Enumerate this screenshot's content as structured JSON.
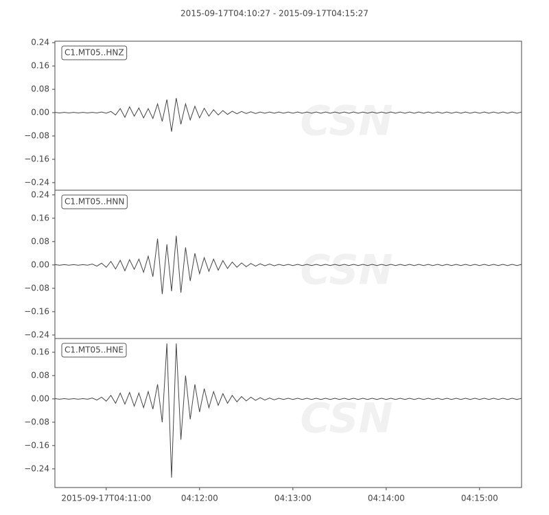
{
  "title": "2015-09-17T04:10:27  -  2015-09-17T04:15:27",
  "watermark": "CSN",
  "chart_data": [
    {
      "type": "line",
      "x": [
        "2015-09-17T04:10:27",
        "2015-09-17T04:10:30",
        "2015-09-17T04:10:33",
        "2015-09-17T04:10:36",
        "2015-09-17T04:10:39",
        "2015-09-17T04:10:42",
        "2015-09-17T04:10:45",
        "2015-09-17T04:10:48",
        "2015-09-17T04:10:51",
        "2015-09-17T04:10:54",
        "2015-09-17T04:10:57",
        "2015-09-17T04:11:00",
        "2015-09-17T04:11:03",
        "2015-09-17T04:11:06",
        "2015-09-17T04:11:09",
        "2015-09-17T04:11:12",
        "2015-09-17T04:11:15",
        "2015-09-17T04:11:18",
        "2015-09-17T04:11:21",
        "2015-09-17T04:11:24",
        "2015-09-17T04:11:27",
        "2015-09-17T04:11:30",
        "2015-09-17T04:11:33",
        "2015-09-17T04:11:36",
        "2015-09-17T04:11:39",
        "2015-09-17T04:11:42",
        "2015-09-17T04:11:45",
        "2015-09-17T04:11:48",
        "2015-09-17T04:11:51",
        "2015-09-17T04:11:54",
        "2015-09-17T04:11:57",
        "2015-09-17T04:12:00",
        "2015-09-17T04:12:03",
        "2015-09-17T04:12:06",
        "2015-09-17T04:12:09",
        "2015-09-17T04:12:12",
        "2015-09-17T04:12:15",
        "2015-09-17T04:12:18",
        "2015-09-17T04:12:21",
        "2015-09-17T04:12:24",
        "2015-09-17T04:12:27",
        "2015-09-17T04:12:30",
        "2015-09-17T04:12:33",
        "2015-09-17T04:12:36",
        "2015-09-17T04:12:39",
        "2015-09-17T04:12:42",
        "2015-09-17T04:12:45",
        "2015-09-17T04:12:48",
        "2015-09-17T04:12:51",
        "2015-09-17T04:12:54",
        "2015-09-17T04:12:57",
        "2015-09-17T04:13:00",
        "2015-09-17T04:13:03",
        "2015-09-17T04:13:06",
        "2015-09-17T04:13:09",
        "2015-09-17T04:13:12",
        "2015-09-17T04:13:15",
        "2015-09-17T04:13:18",
        "2015-09-17T04:13:21",
        "2015-09-17T04:13:24",
        "2015-09-17T04:13:27",
        "2015-09-17T04:13:30",
        "2015-09-17T04:13:33",
        "2015-09-17T04:13:36",
        "2015-09-17T04:13:39",
        "2015-09-17T04:13:42",
        "2015-09-17T04:13:45",
        "2015-09-17T04:13:48",
        "2015-09-17T04:13:51",
        "2015-09-17T04:13:54",
        "2015-09-17T04:13:57",
        "2015-09-17T04:14:00",
        "2015-09-17T04:14:03",
        "2015-09-17T04:14:06",
        "2015-09-17T04:14:09",
        "2015-09-17T04:14:12",
        "2015-09-17T04:14:15",
        "2015-09-17T04:14:18",
        "2015-09-17T04:14:21",
        "2015-09-17T04:14:24",
        "2015-09-17T04:14:27",
        "2015-09-17T04:14:30",
        "2015-09-17T04:14:33",
        "2015-09-17T04:14:36",
        "2015-09-17T04:14:39",
        "2015-09-17T04:14:42",
        "2015-09-17T04:14:45",
        "2015-09-17T04:14:48",
        "2015-09-17T04:14:51",
        "2015-09-17T04:14:54",
        "2015-09-17T04:14:57",
        "2015-09-17T04:15:00",
        "2015-09-17T04:15:03",
        "2015-09-17T04:15:06",
        "2015-09-17T04:15:09",
        "2015-09-17T04:15:12",
        "2015-09-17T04:15:15",
        "2015-09-17T04:15:18",
        "2015-09-17T04:15:21",
        "2015-09-17T04:15:24",
        "2015-09-17T04:15:27"
      ],
      "series": [
        {
          "name": "C1.MT05..HNZ",
          "color": "#444444",
          "values": [
            0.001,
            -0.001,
            0.001,
            -0.001,
            0.001,
            -0.001,
            0.001,
            -0.001,
            0.001,
            -0.001,
            0.002,
            -0.002,
            0.004,
            -0.008,
            0.014,
            -0.016,
            0.02,
            -0.012,
            0.016,
            -0.018,
            0.014,
            -0.02,
            0.03,
            -0.03,
            0.045,
            -0.065,
            0.05,
            -0.04,
            0.03,
            -0.025,
            0.022,
            -0.018,
            0.015,
            -0.012,
            0.01,
            -0.008,
            0.007,
            -0.006,
            0.005,
            -0.004,
            0.004,
            -0.003,
            0.003,
            -0.003,
            0.002,
            -0.002,
            0.002,
            -0.002,
            0.002,
            -0.002,
            0.002,
            -0.002,
            0.002,
            -0.002,
            0.002,
            -0.002,
            0.002,
            -0.002,
            0.002,
            -0.002,
            0.002,
            -0.002,
            0.002,
            -0.002,
            0.002,
            -0.002,
            0.002,
            -0.002,
            0.002,
            -0.002,
            0.002,
            -0.002,
            0.002,
            -0.002,
            0.002,
            -0.002,
            0.002,
            -0.002,
            0.002,
            -0.002,
            0.002,
            -0.002,
            0.002,
            -0.002,
            0.002,
            -0.002,
            0.002,
            -0.002,
            0.002,
            -0.002,
            0.002,
            -0.002,
            0.002,
            -0.002,
            0.002,
            -0.002,
            0.002,
            -0.002,
            0.002,
            -0.002,
            0.002
          ]
        }
      ],
      "xlim": [
        "2015-09-17T04:10:27",
        "2015-09-17T04:15:27"
      ],
      "ylim": [
        -0.266,
        0.245
      ],
      "yticks": [
        0.24,
        0.16,
        0.08,
        {
          "value": 0,
          "label": "0.00"
        },
        {
          "value": -0.08,
          "label": "−0.08"
        },
        {
          "value": -0.16,
          "label": "−0.16"
        },
        {
          "value": -0.24,
          "label": "−0.24"
        }
      ]
    },
    {
      "type": "line",
      "x": [
        "2015-09-17T04:10:27",
        "2015-09-17T04:10:30",
        "2015-09-17T04:10:33",
        "2015-09-17T04:10:36",
        "2015-09-17T04:10:39",
        "2015-09-17T04:10:42",
        "2015-09-17T04:10:45",
        "2015-09-17T04:10:48",
        "2015-09-17T04:10:51",
        "2015-09-17T04:10:54",
        "2015-09-17T04:10:57",
        "2015-09-17T04:11:00",
        "2015-09-17T04:11:03",
        "2015-09-17T04:11:06",
        "2015-09-17T04:11:09",
        "2015-09-17T04:11:12",
        "2015-09-17T04:11:15",
        "2015-09-17T04:11:18",
        "2015-09-17T04:11:21",
        "2015-09-17T04:11:24",
        "2015-09-17T04:11:27",
        "2015-09-17T04:11:30",
        "2015-09-17T04:11:33",
        "2015-09-17T04:11:36",
        "2015-09-17T04:11:39",
        "2015-09-17T04:11:42",
        "2015-09-17T04:11:45",
        "2015-09-17T04:11:48",
        "2015-09-17T04:11:51",
        "2015-09-17T04:11:54",
        "2015-09-17T04:11:57",
        "2015-09-17T04:12:00",
        "2015-09-17T04:12:03",
        "2015-09-17T04:12:06",
        "2015-09-17T04:12:09",
        "2015-09-17T04:12:12",
        "2015-09-17T04:12:15",
        "2015-09-17T04:12:18",
        "2015-09-17T04:12:21",
        "2015-09-17T04:12:24",
        "2015-09-17T04:12:27",
        "2015-09-17T04:12:30",
        "2015-09-17T04:12:33",
        "2015-09-17T04:12:36",
        "2015-09-17T04:12:39",
        "2015-09-17T04:12:42",
        "2015-09-17T04:12:45",
        "2015-09-17T04:12:48",
        "2015-09-17T04:12:51",
        "2015-09-17T04:12:54",
        "2015-09-17T04:12:57",
        "2015-09-17T04:13:00",
        "2015-09-17T04:13:03",
        "2015-09-17T04:13:06",
        "2015-09-17T04:13:09",
        "2015-09-17T04:13:12",
        "2015-09-17T04:13:15",
        "2015-09-17T04:13:18",
        "2015-09-17T04:13:21",
        "2015-09-17T04:13:24",
        "2015-09-17T04:13:27",
        "2015-09-17T04:13:30",
        "2015-09-17T04:13:33",
        "2015-09-17T04:13:36",
        "2015-09-17T04:13:39",
        "2015-09-17T04:13:42",
        "2015-09-17T04:13:45",
        "2015-09-17T04:13:48",
        "2015-09-17T04:13:51",
        "2015-09-17T04:13:54",
        "2015-09-17T04:13:57",
        "2015-09-17T04:14:00",
        "2015-09-17T04:14:03",
        "2015-09-17T04:14:06",
        "2015-09-17T04:14:09",
        "2015-09-17T04:14:12",
        "2015-09-17T04:14:15",
        "2015-09-17T04:14:18",
        "2015-09-17T04:14:21",
        "2015-09-17T04:14:24",
        "2015-09-17T04:14:27",
        "2015-09-17T04:14:30",
        "2015-09-17T04:14:33",
        "2015-09-17T04:14:36",
        "2015-09-17T04:14:39",
        "2015-09-17T04:14:42",
        "2015-09-17T04:14:45",
        "2015-09-17T04:14:48",
        "2015-09-17T04:14:51",
        "2015-09-17T04:14:54",
        "2015-09-17T04:14:57",
        "2015-09-17T04:15:00",
        "2015-09-17T04:15:03",
        "2015-09-17T04:15:06",
        "2015-09-17T04:15:09",
        "2015-09-17T04:15:12",
        "2015-09-17T04:15:15",
        "2015-09-17T04:15:18",
        "2015-09-17T04:15:21",
        "2015-09-17T04:15:24",
        "2015-09-17T04:15:27"
      ],
      "series": [
        {
          "name": "C1.MT05..HNN",
          "color": "#444444",
          "values": [
            0.001,
            -0.001,
            0.001,
            -0.001,
            0.001,
            -0.001,
            0.001,
            -0.001,
            0.003,
            -0.004,
            0.006,
            -0.008,
            0.012,
            -0.014,
            0.016,
            -0.02,
            0.018,
            -0.015,
            0.02,
            -0.025,
            0.03,
            -0.04,
            0.09,
            -0.1,
            0.07,
            -0.09,
            0.1,
            -0.095,
            0.06,
            -0.055,
            0.04,
            -0.03,
            0.025,
            -0.022,
            0.02,
            -0.018,
            0.015,
            -0.012,
            0.01,
            -0.008,
            0.007,
            -0.006,
            0.005,
            -0.004,
            0.004,
            -0.003,
            0.003,
            -0.003,
            0.002,
            -0.002,
            0.002,
            -0.002,
            0.002,
            -0.002,
            0.002,
            -0.002,
            0.002,
            -0.002,
            0.002,
            -0.002,
            0.002,
            -0.002,
            0.002,
            -0.002,
            0.002,
            -0.002,
            0.002,
            -0.002,
            0.002,
            -0.002,
            0.002,
            -0.002,
            0.002,
            -0.002,
            0.002,
            -0.002,
            0.002,
            -0.002,
            0.002,
            -0.002,
            0.002,
            -0.002,
            0.002,
            -0.002,
            0.002,
            -0.002,
            0.002,
            -0.002,
            0.002,
            -0.002,
            0.002,
            -0.002,
            0.002,
            -0.002,
            0.002,
            -0.002,
            0.002,
            -0.002,
            0.002,
            -0.002,
            0.002
          ]
        }
      ],
      "xlim": [
        "2015-09-17T04:10:27",
        "2015-09-17T04:15:27"
      ],
      "ylim": [
        -0.252,
        0.256
      ],
      "yticks": [
        0.24,
        0.16,
        0.08,
        {
          "value": 0,
          "label": "0.00"
        },
        {
          "value": -0.08,
          "label": "−0.08"
        },
        {
          "value": -0.16,
          "label": "−0.16"
        },
        {
          "value": -0.24,
          "label": "−0.24"
        }
      ]
    },
    {
      "type": "line",
      "x": [
        "2015-09-17T04:10:27",
        "2015-09-17T04:10:30",
        "2015-09-17T04:10:33",
        "2015-09-17T04:10:36",
        "2015-09-17T04:10:39",
        "2015-09-17T04:10:42",
        "2015-09-17T04:10:45",
        "2015-09-17T04:10:48",
        "2015-09-17T04:10:51",
        "2015-09-17T04:10:54",
        "2015-09-17T04:10:57",
        "2015-09-17T04:11:00",
        "2015-09-17T04:11:03",
        "2015-09-17T04:11:06",
        "2015-09-17T04:11:09",
        "2015-09-17T04:11:12",
        "2015-09-17T04:11:15",
        "2015-09-17T04:11:18",
        "2015-09-17T04:11:21",
        "2015-09-17T04:11:24",
        "2015-09-17T04:11:27",
        "2015-09-17T04:11:30",
        "2015-09-17T04:11:33",
        "2015-09-17T04:11:36",
        "2015-09-17T04:11:39",
        "2015-09-17T04:11:42",
        "2015-09-17T04:11:45",
        "2015-09-17T04:11:48",
        "2015-09-17T04:11:51",
        "2015-09-17T04:11:54",
        "2015-09-17T04:11:57",
        "2015-09-17T04:12:00",
        "2015-09-17T04:12:03",
        "2015-09-17T04:12:06",
        "2015-09-17T04:12:09",
        "2015-09-17T04:12:12",
        "2015-09-17T04:12:15",
        "2015-09-17T04:12:18",
        "2015-09-17T04:12:21",
        "2015-09-17T04:12:24",
        "2015-09-17T04:12:27",
        "2015-09-17T04:12:30",
        "2015-09-17T04:12:33",
        "2015-09-17T04:12:36",
        "2015-09-17T04:12:39",
        "2015-09-17T04:12:42",
        "2015-09-17T04:12:45",
        "2015-09-17T04:12:48",
        "2015-09-17T04:12:51",
        "2015-09-17T04:12:54",
        "2015-09-17T04:12:57",
        "2015-09-17T04:13:00",
        "2015-09-17T04:13:03",
        "2015-09-17T04:13:06",
        "2015-09-17T04:13:09",
        "2015-09-17T04:13:12",
        "2015-09-17T04:13:15",
        "2015-09-17T04:13:18",
        "2015-09-17T04:13:21",
        "2015-09-17T04:13:24",
        "2015-09-17T04:13:27",
        "2015-09-17T04:13:30",
        "2015-09-17T04:13:33",
        "2015-09-17T04:13:36",
        "2015-09-17T04:13:39",
        "2015-09-17T04:13:42",
        "2015-09-17T04:13:45",
        "2015-09-17T04:13:48",
        "2015-09-17T04:13:51",
        "2015-09-17T04:13:54",
        "2015-09-17T04:13:57",
        "2015-09-17T04:14:00",
        "2015-09-17T04:14:03",
        "2015-09-17T04:14:06",
        "2015-09-17T04:14:09",
        "2015-09-17T04:14:12",
        "2015-09-17T04:14:15",
        "2015-09-17T04:14:18",
        "2015-09-17T04:14:21",
        "2015-09-17T04:14:24",
        "2015-09-17T04:14:27",
        "2015-09-17T04:14:30",
        "2015-09-17T04:14:33",
        "2015-09-17T04:14:36",
        "2015-09-17T04:14:39",
        "2015-09-17T04:14:42",
        "2015-09-17T04:14:45",
        "2015-09-17T04:14:48",
        "2015-09-17T04:14:51",
        "2015-09-17T04:14:54",
        "2015-09-17T04:14:57",
        "2015-09-17T04:15:00",
        "2015-09-17T04:15:03",
        "2015-09-17T04:15:06",
        "2015-09-17T04:15:09",
        "2015-09-17T04:15:12",
        "2015-09-17T04:15:15",
        "2015-09-17T04:15:18",
        "2015-09-17T04:15:21",
        "2015-09-17T04:15:24",
        "2015-09-17T04:15:27"
      ],
      "series": [
        {
          "name": "C1.MT05..HNE",
          "color": "#444444",
          "values": [
            0.001,
            -0.001,
            0.001,
            -0.001,
            0.001,
            -0.001,
            0.001,
            -0.001,
            0.003,
            -0.004,
            0.006,
            -0.008,
            0.012,
            -0.015,
            0.02,
            -0.018,
            0.022,
            -0.025,
            0.02,
            -0.03,
            0.025,
            -0.035,
            0.05,
            -0.08,
            0.19,
            -0.27,
            0.19,
            -0.14,
            0.08,
            -0.07,
            0.05,
            -0.045,
            0.035,
            -0.03,
            0.025,
            -0.022,
            0.018,
            -0.015,
            0.012,
            -0.01,
            0.008,
            -0.007,
            0.006,
            -0.005,
            0.004,
            -0.004,
            0.003,
            -0.003,
            0.002,
            -0.002,
            0.002,
            -0.002,
            0.002,
            -0.002,
            0.002,
            -0.002,
            0.002,
            -0.002,
            0.002,
            -0.002,
            0.002,
            -0.002,
            0.002,
            -0.002,
            0.002,
            -0.002,
            0.002,
            -0.002,
            0.002,
            -0.002,
            0.002,
            -0.002,
            0.002,
            -0.002,
            0.002,
            -0.002,
            0.002,
            -0.002,
            0.002,
            -0.002,
            0.002,
            -0.002,
            0.002,
            -0.002,
            0.002,
            -0.002,
            0.002,
            -0.002,
            0.002,
            -0.002,
            0.002,
            -0.002,
            0.002,
            -0.002,
            0.002,
            -0.002,
            0.002,
            -0.002,
            0.002,
            -0.002,
            0.002
          ]
        }
      ],
      "xlim": [
        "2015-09-17T04:10:27",
        "2015-09-17T04:15:27"
      ],
      "xticks": [
        {
          "value": "2015-09-17T04:11:00",
          "label": "2015-09-17T04:11:00"
        },
        {
          "value": "2015-09-17T04:12:00",
          "label": "04:12:00"
        },
        {
          "value": "2015-09-17T04:13:00",
          "label": "04:13:00"
        },
        {
          "value": "2015-09-17T04:14:00",
          "label": "04:14:00"
        },
        {
          "value": "2015-09-17T04:15:00",
          "label": "04:15:00"
        }
      ],
      "ylim": [
        -0.304,
        0.207
      ],
      "yticks": [
        0.16,
        0.08,
        {
          "value": 0,
          "label": "0.00"
        },
        {
          "value": -0.08,
          "label": "−0.08"
        },
        {
          "value": -0.16,
          "label": "−0.16"
        },
        {
          "value": -0.24,
          "label": "−0.24"
        }
      ]
    }
  ]
}
